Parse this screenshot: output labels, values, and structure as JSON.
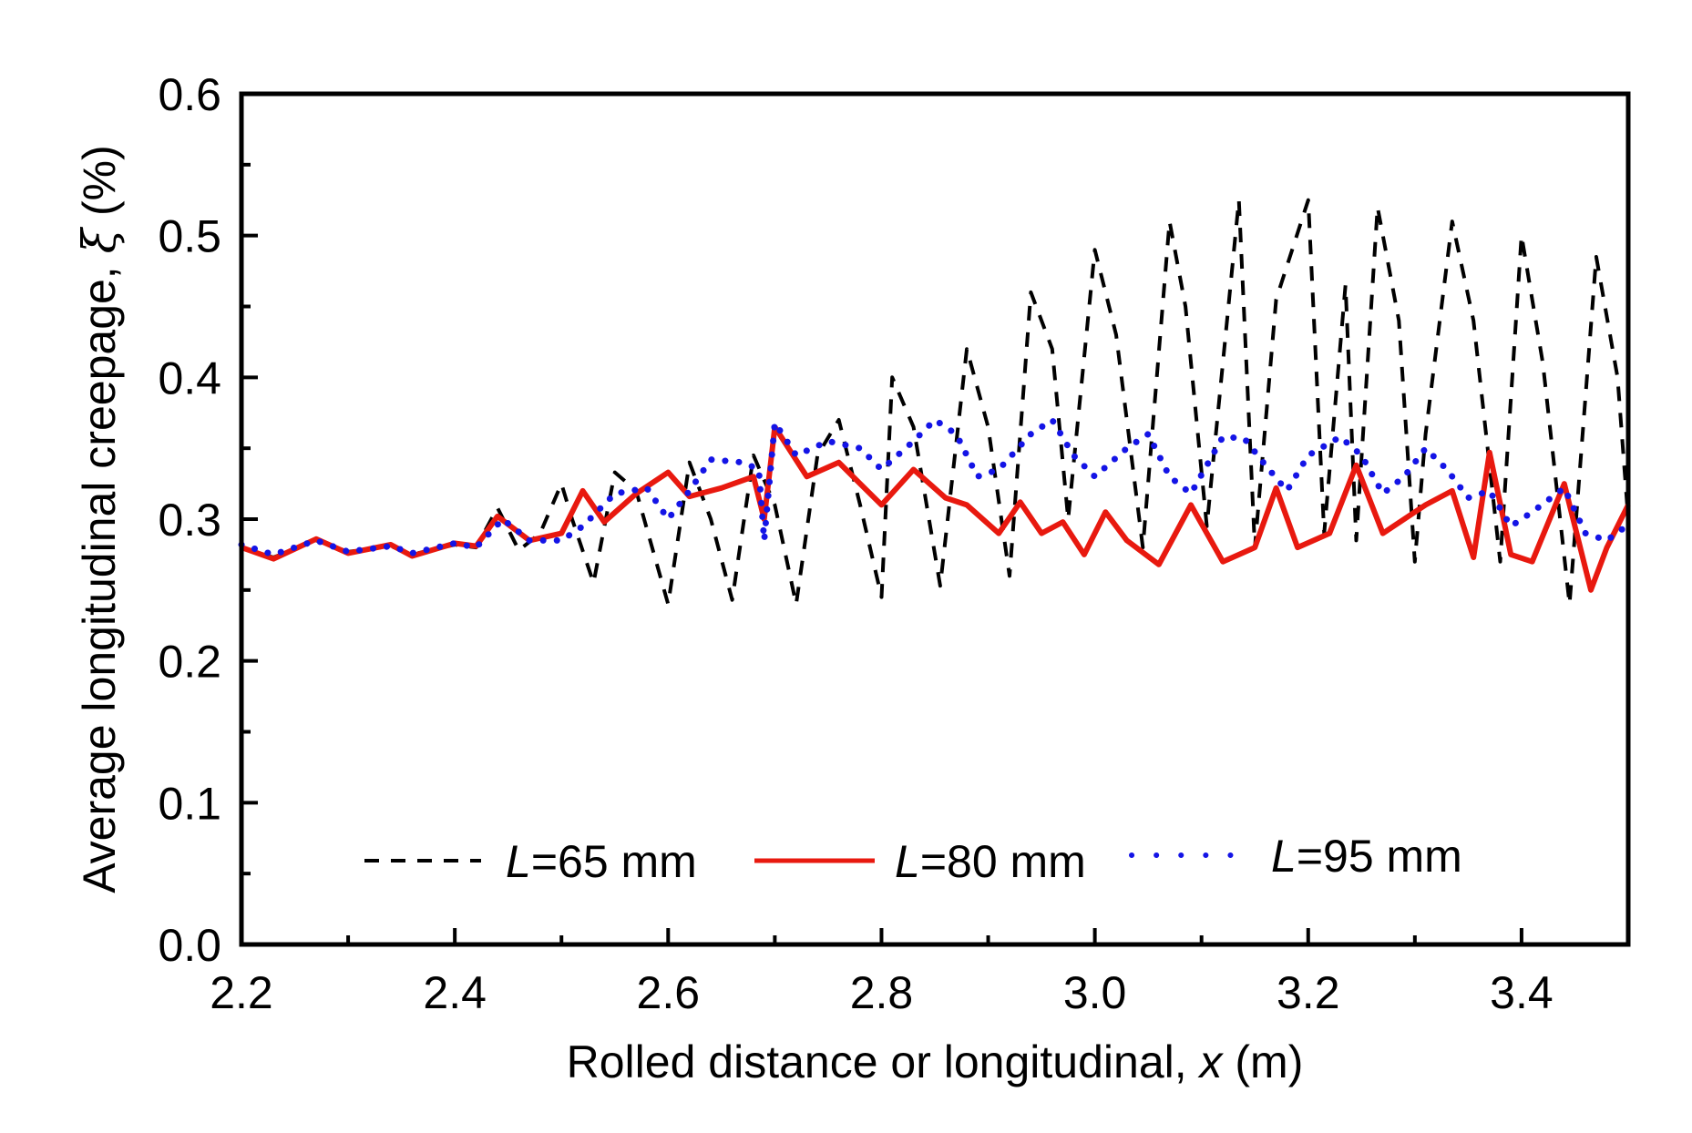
{
  "chart_data": {
    "type": "line",
    "title": "",
    "xlabel": "Rolled distance or longitudinal, x (m)",
    "xlabel_parts": {
      "pre": "Rolled distance or longitudinal, ",
      "var": "x",
      "post": " (m)"
    },
    "ylabel": "Average longitudinal creepage, ξ (%)",
    "ylabel_parts": {
      "pre": "Average longitudinal creepage, ",
      "var": "ξ",
      "post": " (%)"
    },
    "xlim": [
      2.2,
      3.5
    ],
    "ylim": [
      0.0,
      0.6
    ],
    "xticks": [
      "2.2",
      "2.4",
      "2.6",
      "2.8",
      "3.0",
      "3.2",
      "3.4"
    ],
    "yticks": [
      "0.0",
      "0.1",
      "0.2",
      "0.3",
      "0.4",
      "0.5",
      "0.6"
    ],
    "grid": false,
    "legend_position": "bottom-center",
    "series": [
      {
        "name": "L=65 mm",
        "label_var": "L",
        "label_rest": "=65 mm",
        "color": "#000000",
        "style": "dashed",
        "x": [
          2.2,
          2.23,
          2.27,
          2.3,
          2.34,
          2.36,
          2.4,
          2.42,
          2.44,
          2.46,
          2.48,
          2.5,
          2.51,
          2.53,
          2.55,
          2.57,
          2.585,
          2.6,
          2.62,
          2.64,
          2.66,
          2.68,
          2.7,
          2.72,
          2.74,
          2.76,
          2.78,
          2.8,
          2.81,
          2.83,
          2.855,
          2.88,
          2.9,
          2.92,
          2.94,
          2.96,
          2.975,
          3.0,
          3.02,
          3.045,
          3.07,
          3.085,
          3.105,
          3.135,
          3.15,
          3.17,
          3.2,
          3.215,
          3.235,
          3.245,
          3.265,
          3.285,
          3.3,
          3.31,
          3.335,
          3.355,
          3.38,
          3.4,
          3.42,
          3.445,
          3.47,
          3.49,
          3.5
        ],
        "y": [
          0.28,
          0.273,
          0.285,
          0.277,
          0.281,
          0.275,
          0.282,
          0.28,
          0.308,
          0.278,
          0.29,
          0.325,
          0.3,
          0.255,
          0.333,
          0.32,
          0.28,
          0.24,
          0.34,
          0.3,
          0.243,
          0.345,
          0.31,
          0.24,
          0.345,
          0.37,
          0.31,
          0.245,
          0.4,
          0.365,
          0.253,
          0.42,
          0.365,
          0.26,
          0.46,
          0.42,
          0.3,
          0.49,
          0.43,
          0.28,
          0.51,
          0.45,
          0.295,
          0.525,
          0.28,
          0.455,
          0.525,
          0.29,
          0.465,
          0.285,
          0.52,
          0.44,
          0.27,
          0.36,
          0.51,
          0.44,
          0.27,
          0.5,
          0.41,
          0.24,
          0.485,
          0.4,
          0.3
        ]
      },
      {
        "name": "L=80 mm",
        "label_var": "L",
        "label_rest": "=80 mm",
        "color": "#e8190f",
        "style": "solid",
        "x": [
          2.2,
          2.23,
          2.27,
          2.3,
          2.34,
          2.36,
          2.4,
          2.42,
          2.44,
          2.47,
          2.5,
          2.52,
          2.54,
          2.57,
          2.6,
          2.62,
          2.65,
          2.68,
          2.69,
          2.7,
          2.73,
          2.76,
          2.78,
          2.8,
          2.83,
          2.86,
          2.88,
          2.91,
          2.93,
          2.95,
          2.97,
          2.99,
          3.01,
          3.03,
          3.06,
          3.09,
          3.12,
          3.15,
          3.17,
          3.19,
          3.22,
          3.245,
          3.27,
          3.29,
          3.31,
          3.335,
          3.355,
          3.37,
          3.39,
          3.41,
          3.44,
          3.465,
          3.48,
          3.5
        ],
        "y": [
          0.28,
          0.272,
          0.286,
          0.276,
          0.282,
          0.274,
          0.283,
          0.281,
          0.302,
          0.285,
          0.29,
          0.32,
          0.298,
          0.318,
          0.333,
          0.316,
          0.322,
          0.33,
          0.3,
          0.365,
          0.33,
          0.34,
          0.325,
          0.31,
          0.335,
          0.315,
          0.31,
          0.29,
          0.312,
          0.29,
          0.298,
          0.275,
          0.305,
          0.285,
          0.268,
          0.31,
          0.27,
          0.28,
          0.322,
          0.28,
          0.29,
          0.338,
          0.29,
          0.3,
          0.31,
          0.32,
          0.273,
          0.347,
          0.275,
          0.27,
          0.325,
          0.25,
          0.28,
          0.31
        ]
      },
      {
        "name": "L=95 mm",
        "label_var": "L",
        "label_rest": "=95 mm",
        "color": "#1414e6",
        "style": "dotted",
        "x": [
          2.2,
          2.23,
          2.27,
          2.3,
          2.34,
          2.36,
          2.4,
          2.42,
          2.445,
          2.47,
          2.5,
          2.52,
          2.55,
          2.58,
          2.6,
          2.62,
          2.64,
          2.67,
          2.685,
          2.69,
          2.7,
          2.72,
          2.75,
          2.78,
          2.8,
          2.83,
          2.85,
          2.87,
          2.89,
          2.91,
          2.94,
          2.96,
          2.98,
          3.0,
          3.03,
          3.05,
          3.07,
          3.09,
          3.12,
          3.14,
          3.16,
          3.18,
          3.2,
          3.23,
          3.25,
          3.27,
          3.29,
          3.31,
          3.33,
          3.35,
          3.37,
          3.39,
          3.41,
          3.44,
          3.46,
          3.48,
          3.5
        ],
        "y": [
          0.282,
          0.275,
          0.285,
          0.277,
          0.281,
          0.276,
          0.283,
          0.28,
          0.3,
          0.285,
          0.285,
          0.295,
          0.318,
          0.322,
          0.3,
          0.32,
          0.342,
          0.34,
          0.335,
          0.285,
          0.368,
          0.345,
          0.355,
          0.35,
          0.335,
          0.355,
          0.37,
          0.36,
          0.33,
          0.335,
          0.36,
          0.37,
          0.345,
          0.33,
          0.35,
          0.36,
          0.33,
          0.318,
          0.358,
          0.357,
          0.338,
          0.32,
          0.345,
          0.358,
          0.345,
          0.318,
          0.33,
          0.35,
          0.335,
          0.315,
          0.32,
          0.295,
          0.305,
          0.322,
          0.29,
          0.285,
          0.296
        ]
      }
    ]
  }
}
